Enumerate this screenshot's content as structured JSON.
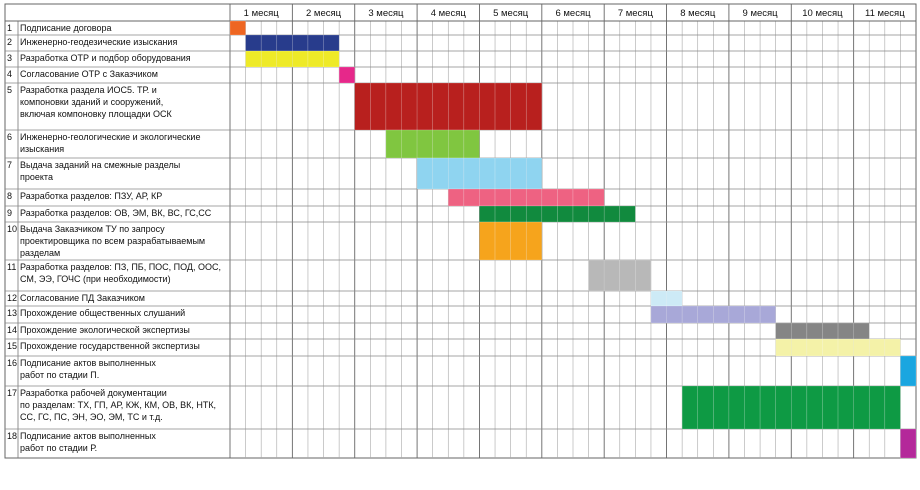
{
  "months": [
    "1 месяц",
    "2 месяц",
    "3 месяц",
    "4 месяц",
    "5 месяц",
    "6 месяц",
    "7 месяц",
    "8 месяц",
    "9 месяц",
    "10 месяц",
    "11 месяц"
  ],
  "weeks_per_month": 4,
  "tasks": [
    {
      "num": "1",
      "lines": [
        "Подписание договора"
      ],
      "start": 1,
      "end": 1,
      "color": "#ee6622"
    },
    {
      "num": "2",
      "lines": [
        "Инженерно-геодезические изыскания"
      ],
      "start": 2,
      "end": 7,
      "color": "#283c8c"
    },
    {
      "num": "3",
      "lines": [
        "Разработка ОТР и подбор оборудования"
      ],
      "start": 2,
      "end": 7,
      "color": "#eeea28"
    },
    {
      "num": "4",
      "lines": [
        "Согласование ОТР с Заказчиком"
      ],
      "start": 8,
      "end": 8,
      "color": "#e6288a"
    },
    {
      "num": "5",
      "lines": [
        "Разработка раздела ИОС5. ТР. и",
        "компоновки зданий и сооружений,",
        "включая компоновку площадки ОСК"
      ],
      "start": 9,
      "end": 20,
      "color": "#b8201e"
    },
    {
      "num": "6",
      "lines": [
        "Инженерно-геологические и экологические",
        "изыскания"
      ],
      "start": 11,
      "end": 16,
      "color": "#80c640"
    },
    {
      "num": "7",
      "lines": [
        "Выдача заданий на смежные разделы",
        "проекта"
      ],
      "start": 13,
      "end": 20,
      "color": "#8fd4f0"
    },
    {
      "num": "8",
      "lines": [
        "Разработка разделов: ПЗУ, АР, КР"
      ],
      "start": 15,
      "end": 24,
      "color": "#ee6282"
    },
    {
      "num": "9",
      "lines": [
        "Разработка разделов: ОВ, ЭМ, ВК, ВС, ГС,СС"
      ],
      "start": 17,
      "end": 26,
      "color": "#118a3e"
    },
    {
      "num": "10",
      "lines": [
        "Выдача Заказчиком ТУ по запросу",
        "проектировщика по всем разрабатываемым",
        "разделам"
      ],
      "start": 17,
      "end": 20,
      "color": "#f6a41c"
    },
    {
      "num": "11",
      "lines": [
        "Разработка разделов: ПЗ, ПБ, ПОС, ПОД, ООС,",
        "СМ, ЭЭ, ГОЧС (при необходимости)"
      ],
      "start": 24,
      "end": 27,
      "color": "#b8b8b8"
    },
    {
      "num": "12",
      "lines": [
        "Согласование ПД Заказчиком"
      ],
      "start": 28,
      "end": 29,
      "color": "#cdeaf6"
    },
    {
      "num": "13",
      "lines": [
        "Прохождение общественных слушаний"
      ],
      "start": 28,
      "end": 35,
      "color": "#a8a8d8"
    },
    {
      "num": "14",
      "lines": [
        "Прохождение экологической экспертизы"
      ],
      "start": 36,
      "end": 41,
      "color": "#858585"
    },
    {
      "num": "15",
      "lines": [
        "Прохождение государственной экспертизы"
      ],
      "start": 36,
      "end": 43,
      "color": "#f4f2a8"
    },
    {
      "num": "16",
      "lines": [
        "Подписание актов выполненных",
        "работ по стадии П."
      ],
      "start": 44,
      "end": 44,
      "color": "#1aa6e0"
    },
    {
      "num": "17",
      "lines": [
        "Разработка рабочей документации",
        "по разделам: ТХ, ГП, АР, КЖ, КМ, ОВ, ВК, НТК,",
        "СС, ГС, ПС, ЭН, ЭО, ЭМ, ТС и т.д."
      ],
      "start": 30,
      "end": 43,
      "color": "#0e9a44"
    },
    {
      "num": "18",
      "lines": [
        "Подписание актов выполненных",
        "работ по стадии Р."
      ],
      "start": 44,
      "end": 44,
      "color": "#b4289a"
    }
  ]
}
